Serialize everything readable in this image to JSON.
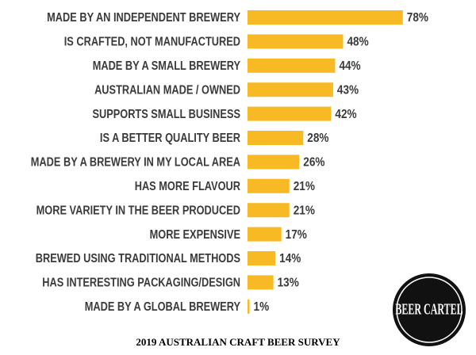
{
  "chart_data": {
    "type": "hbar",
    "title": "2019 AUSTRALIAN CRAFT BEER SURVEY",
    "logo_text": "BEER CARTEL",
    "categories": [
      "MADE BY AN INDEPENDENT BREWERY",
      "IS CRAFTED, NOT MANUFACTURED",
      "MADE BY A SMALL BREWERY",
      "AUSTRALIAN MADE / OWNED",
      "SUPPORTS SMALL BUSINESS",
      "IS A BETTER QUALITY BEER",
      "MADE BY A BREWERY IN MY LOCAL AREA",
      "HAS MORE FLAVOUR",
      "MORE VARIETY IN THE BEER PRODUCED",
      "MORE EXPENSIVE",
      "BREWED USING TRADITIONAL METHODS",
      "HAS INTERESTING PACKAGING/DESIGN",
      "MADE BY A GLOBAL BREWERY"
    ],
    "values": [
      78,
      48,
      44,
      43,
      42,
      28,
      26,
      21,
      21,
      17,
      14,
      13,
      1
    ],
    "value_labels": [
      "78%",
      "48%",
      "44%",
      "43%",
      "42%",
      "28%",
      "26%",
      "21%",
      "21%",
      "17%",
      "14%",
      "13%",
      "1%"
    ],
    "color": "#f7b924"
  }
}
